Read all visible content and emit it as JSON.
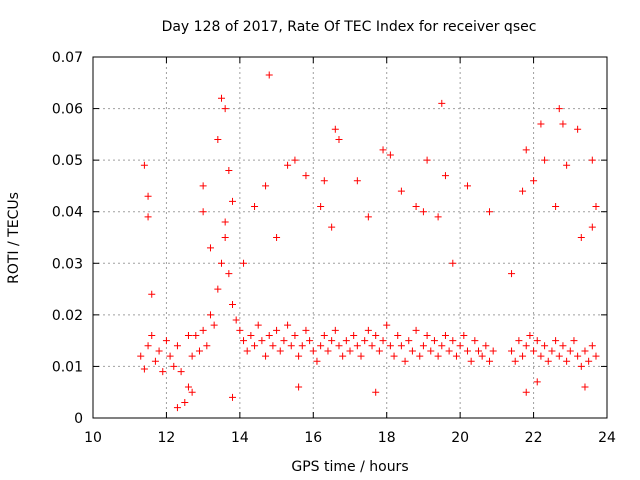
{
  "chart_data": {
    "type": "scatter",
    "title": "Day 128 of 2017, Rate Of TEC Index for receiver qsec",
    "xlabel": "GPS time / hours",
    "ylabel": "ROTI / TECUs",
    "xlim": [
      10,
      24
    ],
    "ylim": [
      0,
      0.07
    ],
    "x_ticks": [
      "10",
      "12",
      "14",
      "16",
      "18",
      "20",
      "22",
      "24"
    ],
    "y_ticks": [
      "0",
      "0.01",
      "0.02",
      "0.03",
      "0.04",
      "0.05",
      "0.06",
      "0.07"
    ],
    "grid": true,
    "marker": "+",
    "color": "#ff0000",
    "series": [
      {
        "points": [
          [
            11.3,
            0.012
          ],
          [
            11.4,
            0.0095
          ],
          [
            11.5,
            0.014
          ],
          [
            11.6,
            0.016
          ],
          [
            11.7,
            0.011
          ],
          [
            11.8,
            0.013
          ],
          [
            11.9,
            0.009
          ],
          [
            12.0,
            0.015
          ],
          [
            12.1,
            0.012
          ],
          [
            12.2,
            0.01
          ],
          [
            12.3,
            0.014
          ],
          [
            12.4,
            0.009
          ],
          [
            12.5,
            0.003
          ],
          [
            12.6,
            0.006
          ],
          [
            12.7,
            0.012
          ],
          [
            12.8,
            0.016
          ],
          [
            12.9,
            0.013
          ],
          [
            13.0,
            0.017
          ],
          [
            13.1,
            0.014
          ],
          [
            13.2,
            0.02
          ],
          [
            13.3,
            0.018
          ],
          [
            13.4,
            0.025
          ],
          [
            13.5,
            0.03
          ],
          [
            13.6,
            0.035
          ],
          [
            13.7,
            0.028
          ],
          [
            13.8,
            0.022
          ],
          [
            13.9,
            0.019
          ],
          [
            14.0,
            0.017
          ],
          [
            14.1,
            0.015
          ],
          [
            14.2,
            0.013
          ],
          [
            14.3,
            0.016
          ],
          [
            14.4,
            0.014
          ],
          [
            14.5,
            0.018
          ],
          [
            14.6,
            0.015
          ],
          [
            14.7,
            0.012
          ],
          [
            14.8,
            0.016
          ],
          [
            14.9,
            0.014
          ],
          [
            15.0,
            0.017
          ],
          [
            15.1,
            0.013
          ],
          [
            15.2,
            0.015
          ],
          [
            15.3,
            0.018
          ],
          [
            15.4,
            0.014
          ],
          [
            15.5,
            0.016
          ],
          [
            15.6,
            0.012
          ],
          [
            15.7,
            0.014
          ],
          [
            15.8,
            0.017
          ],
          [
            15.9,
            0.015
          ],
          [
            16.0,
            0.013
          ],
          [
            16.1,
            0.011
          ],
          [
            16.2,
            0.014
          ],
          [
            16.3,
            0.016
          ],
          [
            16.4,
            0.013
          ],
          [
            16.5,
            0.015
          ],
          [
            16.6,
            0.017
          ],
          [
            16.7,
            0.014
          ],
          [
            16.8,
            0.012
          ],
          [
            16.9,
            0.015
          ],
          [
            17.0,
            0.013
          ],
          [
            17.1,
            0.016
          ],
          [
            17.2,
            0.014
          ],
          [
            17.3,
            0.012
          ],
          [
            17.4,
            0.015
          ],
          [
            17.5,
            0.017
          ],
          [
            17.6,
            0.014
          ],
          [
            17.7,
            0.016
          ],
          [
            17.8,
            0.013
          ],
          [
            17.9,
            0.015
          ],
          [
            18.0,
            0.018
          ],
          [
            18.1,
            0.014
          ],
          [
            18.2,
            0.012
          ],
          [
            18.3,
            0.016
          ],
          [
            18.4,
            0.014
          ],
          [
            18.5,
            0.011
          ],
          [
            18.6,
            0.015
          ],
          [
            18.7,
            0.013
          ],
          [
            18.8,
            0.017
          ],
          [
            18.9,
            0.012
          ],
          [
            19.0,
            0.014
          ],
          [
            19.1,
            0.016
          ],
          [
            19.2,
            0.013
          ],
          [
            19.3,
            0.015
          ],
          [
            19.4,
            0.012
          ],
          [
            19.5,
            0.014
          ],
          [
            19.6,
            0.016
          ],
          [
            19.7,
            0.013
          ],
          [
            19.8,
            0.015
          ],
          [
            19.9,
            0.012
          ],
          [
            20.0,
            0.014
          ],
          [
            20.1,
            0.016
          ],
          [
            20.2,
            0.013
          ],
          [
            20.3,
            0.011
          ],
          [
            20.4,
            0.015
          ],
          [
            20.5,
            0.013
          ],
          [
            20.6,
            0.012
          ],
          [
            20.7,
            0.014
          ],
          [
            20.8,
            0.011
          ],
          [
            20.9,
            0.013
          ],
          [
            21.4,
            0.013
          ],
          [
            21.5,
            0.011
          ],
          [
            21.6,
            0.015
          ],
          [
            21.7,
            0.012
          ],
          [
            21.8,
            0.014
          ],
          [
            21.9,
            0.016
          ],
          [
            22.0,
            0.013
          ],
          [
            22.1,
            0.015
          ],
          [
            22.2,
            0.012
          ],
          [
            22.3,
            0.014
          ],
          [
            22.4,
            0.011
          ],
          [
            22.5,
            0.013
          ],
          [
            22.6,
            0.015
          ],
          [
            22.7,
            0.012
          ],
          [
            22.8,
            0.014
          ],
          [
            22.9,
            0.011
          ],
          [
            23.0,
            0.013
          ],
          [
            23.1,
            0.015
          ],
          [
            23.2,
            0.012
          ],
          [
            23.3,
            0.01
          ],
          [
            23.4,
            0.013
          ],
          [
            23.5,
            0.011
          ],
          [
            23.6,
            0.014
          ],
          [
            23.7,
            0.012
          ],
          [
            11.4,
            0.049
          ],
          [
            11.5,
            0.043
          ],
          [
            11.5,
            0.039
          ],
          [
            11.6,
            0.024
          ],
          [
            12.6,
            0.016
          ],
          [
            13.0,
            0.04
          ],
          [
            13.0,
            0.045
          ],
          [
            13.2,
            0.033
          ],
          [
            13.4,
            0.054
          ],
          [
            13.5,
            0.062
          ],
          [
            13.6,
            0.06
          ],
          [
            13.7,
            0.048
          ],
          [
            13.8,
            0.042
          ],
          [
            13.6,
            0.038
          ],
          [
            14.1,
            0.03
          ],
          [
            14.4,
            0.041
          ],
          [
            14.8,
            0.0665
          ],
          [
            14.7,
            0.045
          ],
          [
            15.0,
            0.035
          ],
          [
            15.3,
            0.049
          ],
          [
            15.5,
            0.05
          ],
          [
            15.8,
            0.047
          ],
          [
            16.2,
            0.041
          ],
          [
            16.3,
            0.046
          ],
          [
            16.5,
            0.037
          ],
          [
            16.6,
            0.056
          ],
          [
            16.7,
            0.054
          ],
          [
            17.2,
            0.046
          ],
          [
            17.5,
            0.039
          ],
          [
            17.9,
            0.052
          ],
          [
            18.1,
            0.051
          ],
          [
            18.4,
            0.044
          ],
          [
            18.8,
            0.041
          ],
          [
            19.0,
            0.04
          ],
          [
            19.1,
            0.05
          ],
          [
            19.4,
            0.039
          ],
          [
            19.5,
            0.061
          ],
          [
            19.6,
            0.047
          ],
          [
            19.8,
            0.03
          ],
          [
            20.2,
            0.045
          ],
          [
            20.8,
            0.04
          ],
          [
            21.4,
            0.028
          ],
          [
            21.7,
            0.044
          ],
          [
            21.8,
            0.052
          ],
          [
            22.0,
            0.046
          ],
          [
            22.2,
            0.057
          ],
          [
            22.3,
            0.05
          ],
          [
            22.6,
            0.041
          ],
          [
            22.7,
            0.06
          ],
          [
            22.8,
            0.057
          ],
          [
            22.9,
            0.049
          ],
          [
            23.2,
            0.056
          ],
          [
            23.3,
            0.035
          ],
          [
            23.6,
            0.05
          ],
          [
            23.7,
            0.041
          ],
          [
            23.6,
            0.037
          ],
          [
            12.3,
            0.002
          ],
          [
            12.7,
            0.005
          ],
          [
            13.8,
            0.004
          ],
          [
            15.6,
            0.006
          ],
          [
            17.7,
            0.005
          ],
          [
            21.8,
            0.005
          ],
          [
            22.1,
            0.007
          ],
          [
            23.4,
            0.006
          ]
        ]
      }
    ]
  }
}
